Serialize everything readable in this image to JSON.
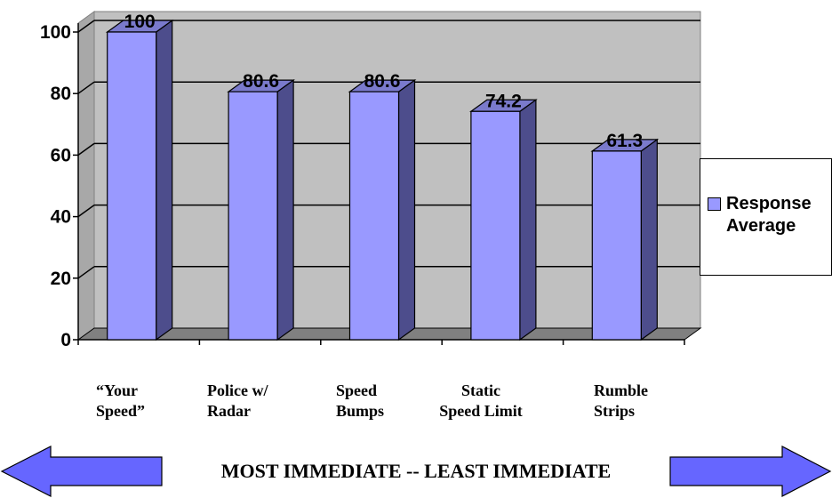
{
  "chart_data": {
    "type": "bar",
    "categories": [
      "“Your\nSpeed”",
      "Police w/\nRadar",
      "Speed\nBumps",
      "Static\nSpeed Limit",
      "Rumble\nStrips"
    ],
    "series": [
      {
        "name": "Response\nAverage",
        "values": [
          100,
          80.6,
          80.6,
          74.2,
          61.3
        ],
        "color": "#9999ff"
      }
    ],
    "data_labels": [
      "100",
      "80.6",
      "80.6",
      "74.2",
      "61.3"
    ],
    "y_ticks": [
      "0",
      "20",
      "40",
      "60",
      "80",
      "100"
    ],
    "ylim": [
      0,
      100
    ],
    "grid": true,
    "legend_position": "right",
    "style": "3d",
    "colors": {
      "bar_front": "#9999ff",
      "bar_side": "#4d4d8c",
      "bar_top": "#7a7acc",
      "wall": "#c0c0c0",
      "floor": "#808080"
    }
  },
  "footer": {
    "banner_text": "MOST IMMEDIATE -- LEAST IMMEDIATE",
    "arrow_color": "#6666ff"
  }
}
